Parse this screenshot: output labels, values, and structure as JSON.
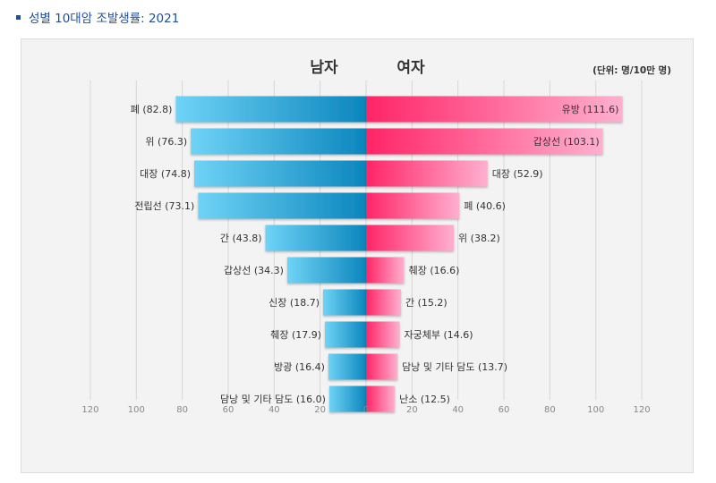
{
  "page_heading": "성별 10대암 조발생률: 2021",
  "colors": {
    "heading": "#1f4e9b",
    "male_dark": "#0b86bd",
    "male_light": "#6fd3f6",
    "female_dark": "#ff2468",
    "female_light": "#ffb0cf"
  },
  "chart_data": {
    "type": "bar",
    "orientation": "horizontal-butterfly",
    "title_left": "남자",
    "title_right": "여자",
    "unit_note": "(단위: 명/10만 명)",
    "xlim": [
      -120,
      120
    ],
    "ticks": [
      120,
      100,
      80,
      60,
      40,
      20,
      0,
      20,
      40,
      60,
      80,
      100,
      120
    ],
    "grid": true,
    "series": [
      {
        "name": "남자",
        "side": "left",
        "categories": [
          "폐",
          "위",
          "대장",
          "전립선",
          "간",
          "갑상선",
          "신장",
          "췌장",
          "방광",
          "담낭 및 기타 담도"
        ],
        "labels": [
          "폐 (82.8)",
          "위 (76.3)",
          "대장 (74.8)",
          "전립선 (73.1)",
          "간 (43.8)",
          "갑상선 (34.3)",
          "신장 (18.7)",
          "췌장 (17.9)",
          "방광 (16.4)",
          "담낭 및 기타 담도 (16.0)"
        ],
        "values": [
          82.8,
          76.3,
          74.8,
          73.1,
          43.8,
          34.3,
          18.7,
          17.9,
          16.4,
          16.0
        ]
      },
      {
        "name": "여자",
        "side": "right",
        "categories": [
          "유방",
          "갑상선",
          "대장",
          "폐",
          "위",
          "췌장",
          "간",
          "자궁체부",
          "담낭 및 기타 담도",
          "난소"
        ],
        "labels": [
          "유방 (111.6)",
          "갑상선 (103.1)",
          "대장 (52.9)",
          "폐 (40.6)",
          "위 (38.2)",
          "췌장 (16.6)",
          "간 (15.2)",
          "자궁체부 (14.6)",
          "담낭 및 기타 담도 (13.7)",
          "난소 (12.5)"
        ],
        "values": [
          111.6,
          103.1,
          52.9,
          40.6,
          38.2,
          16.6,
          15.2,
          14.6,
          13.7,
          12.5
        ]
      }
    ]
  }
}
